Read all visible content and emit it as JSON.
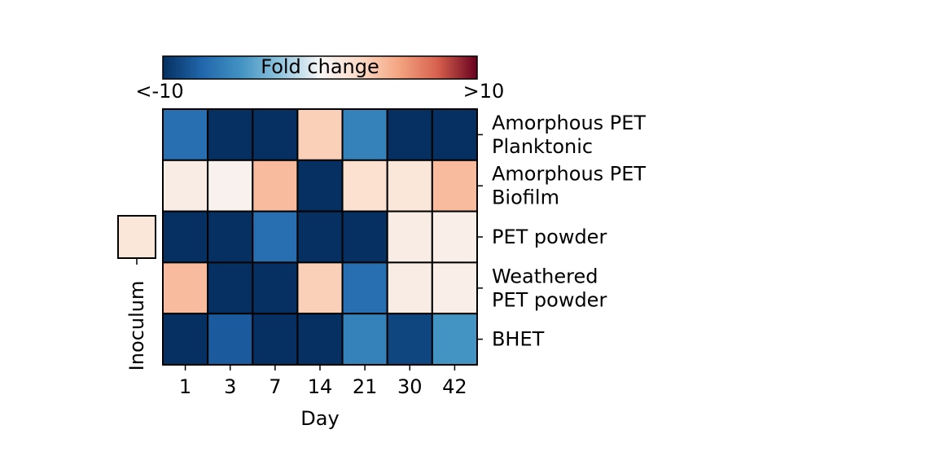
{
  "chart_data": {
    "type": "heatmap",
    "title": "",
    "xlabel": "Day",
    "ylabel": "",
    "x": [
      "1",
      "3",
      "7",
      "14",
      "21",
      "30",
      "42"
    ],
    "y": [
      "Amorphous PET Planktonic",
      "Amorphous PET Biofilm",
      "PET powder",
      "Weathered PET powder",
      "BHET"
    ],
    "y_lines": [
      [
        "Amorphous PET",
        "Planktonic"
      ],
      [
        "Amorphous PET",
        "Biofilm"
      ],
      [
        "PET powder"
      ],
      [
        "Weathered",
        "PET powder"
      ],
      [
        "BHET"
      ]
    ],
    "values": [
      [
        -7,
        -10,
        -10,
        3,
        -6,
        -10,
        -10
      ],
      [
        1,
        0.5,
        4,
        -10,
        2,
        1.5,
        4
      ],
      [
        -10,
        -10,
        -7,
        -10,
        -10,
        1,
        0.8
      ],
      [
        4,
        -10,
        -10,
        3,
        -7,
        1,
        0.8
      ],
      [
        -10,
        -8,
        -10,
        -10,
        -6,
        -9,
        -5
      ]
    ],
    "vmin": -10,
    "vmax": 10,
    "colormap": "RdBu_r",
    "colorbar": {
      "label": "Fold change",
      "min_label": "<-10",
      "max_label": ">10",
      "position": "top"
    },
    "side_annotation": {
      "label": "Inoculum",
      "value": 1.5
    },
    "grid": false
  }
}
